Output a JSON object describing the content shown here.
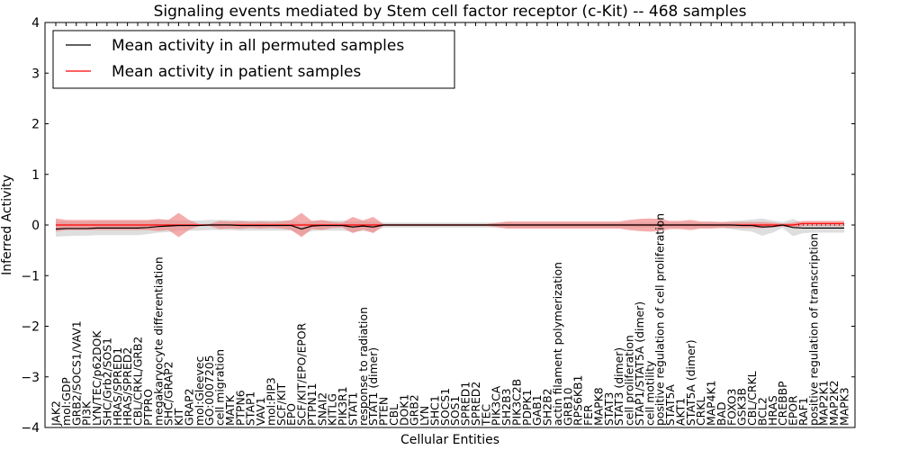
{
  "chart_data": {
    "type": "line",
    "title": "Signaling events mediated by Stem cell factor receptor (c-Kit) -- 468 samples",
    "xlabel": "Cellular Entities",
    "ylabel": "Inferred Activity",
    "ylim": [
      -4,
      4
    ],
    "yticks": [
      -4,
      -3,
      -2,
      -1,
      0,
      1,
      2,
      3,
      4
    ],
    "ytick_labels": [
      "−4",
      "−3",
      "−2",
      "−1",
      "0",
      "1",
      "2",
      "3",
      "4"
    ],
    "grid": false,
    "legend_position": "top-left",
    "categories": [
      "JAK2",
      "mol:GDP",
      "GRB2/SOCS1/VAV1",
      "PI3K",
      "LYN/TEC/p62DOK",
      "SHC/Grb2/SOS1",
      "HRAS/SPRED1",
      "HRAS/SPRED2",
      "CBL/CRKL/GRB2",
      "PTPRO",
      "megakaryocyte differentiation",
      "SHC/GRAP2",
      "KIT",
      "GRAP2",
      "mol:Gleevec",
      "GO:0007205",
      "cell migration",
      "MATK",
      "PTPN6",
      "STAP1",
      "VAV1",
      "mol:PIP3",
      "SCF/KIT",
      "EPO",
      "SCF/KIT/EPO/EPOR",
      "PTPN11",
      "SNAI2",
      "KITLG",
      "PIK3R1",
      "STAT1",
      "response to radiation",
      "STAT1 (dimer)",
      "PTEN",
      "CBL",
      "DOK1",
      "GRB2",
      "LYN",
      "SHC1",
      "SOCS1",
      "SOS1",
      "SPRED1",
      "SPRED2",
      "TEC",
      "PIK3CA",
      "SH2B3",
      "PIK3C2B",
      "PDPK1",
      "GAB1",
      "SH2B2",
      "actin filament polymerization",
      "GRB10",
      "RPS6KB1",
      "FER",
      "MAPK8",
      "STAT3",
      "STAT3 (dimer)",
      "cell proliferation",
      "STAP1/STAT5A (dimer)",
      "cell motility",
      "positive regulation of cell proliferation",
      "STAT5A",
      "AKT1",
      "STAT5A (dimer)",
      "CRKL",
      "MAP4K1",
      "BAD",
      "FOXO3",
      "GSK3B",
      "CBL/CRKL",
      "BCL2",
      "HRAS",
      "CREBBP",
      "EPOR",
      "RAF1",
      "positive regulation of transcription",
      "MAP2K1",
      "MAP2K2",
      "MAPK3"
    ],
    "series": [
      {
        "name": "Mean activity in all permuted samples",
        "color": "#000000",
        "values": [
          -0.08,
          -0.07,
          -0.07,
          -0.07,
          -0.06,
          -0.06,
          -0.06,
          -0.06,
          -0.06,
          -0.05,
          -0.03,
          -0.02,
          -0.01,
          -0.01,
          -0.01,
          0.0,
          0.0,
          0.0,
          -0.01,
          -0.01,
          -0.01,
          -0.01,
          -0.01,
          -0.01,
          -0.08,
          -0.02,
          -0.01,
          -0.01,
          -0.01,
          -0.04,
          -0.02,
          -0.04,
          0.0,
          0.0,
          0.0,
          0.0,
          0.0,
          0.0,
          0.0,
          0.0,
          0.0,
          0.0,
          0.0,
          0.0,
          0.0,
          0.0,
          0.0,
          0.0,
          0.0,
          0.0,
          0.0,
          0.0,
          0.0,
          0.0,
          0.0,
          0.0,
          0.0,
          0.0,
          0.0,
          0.0,
          0.0,
          0.0,
          0.0,
          0.0,
          0.0,
          0.0,
          0.0,
          -0.01,
          -0.01,
          -0.04,
          -0.03,
          0.0,
          -0.05,
          -0.06,
          -0.06,
          -0.06,
          -0.06,
          -0.06
        ],
        "band": [
          0.15,
          0.15,
          0.14,
          0.14,
          0.14,
          0.14,
          0.14,
          0.14,
          0.14,
          0.13,
          0.12,
          0.12,
          0.1,
          0.1,
          0.1,
          0.1,
          0.1,
          0.1,
          0.1,
          0.1,
          0.1,
          0.1,
          0.1,
          0.1,
          0.12,
          0.1,
          0.1,
          0.1,
          0.1,
          0.1,
          0.1,
          0.1,
          0.05,
          0.05,
          0.05,
          0.05,
          0.05,
          0.05,
          0.05,
          0.05,
          0.05,
          0.05,
          0.05,
          0.05,
          0.05,
          0.05,
          0.05,
          0.05,
          0.05,
          0.05,
          0.05,
          0.05,
          0.05,
          0.05,
          0.05,
          0.05,
          0.05,
          0.05,
          0.05,
          0.05,
          0.05,
          0.05,
          0.05,
          0.05,
          0.05,
          0.05,
          0.08,
          0.1,
          0.12,
          0.17,
          0.12,
          0.06,
          0.17,
          0.1,
          0.09,
          0.09,
          0.09,
          0.09
        ]
      },
      {
        "name": "Mean activity in patient samples",
        "color": "#ff0000",
        "values": [
          0.0,
          0.0,
          0.0,
          0.0,
          0.0,
          0.0,
          0.0,
          0.0,
          0.0,
          0.0,
          0.0,
          0.0,
          0.0,
          0.0,
          0.0,
          0.0,
          0.0,
          0.0,
          0.0,
          0.0,
          0.0,
          0.0,
          0.0,
          0.0,
          0.0,
          0.0,
          0.0,
          0.0,
          0.0,
          0.0,
          0.0,
          0.0,
          0.0,
          0.0,
          0.0,
          0.0,
          0.0,
          0.0,
          0.0,
          0.0,
          0.0,
          0.0,
          0.0,
          0.0,
          0.0,
          0.0,
          0.0,
          0.0,
          0.0,
          0.0,
          0.0,
          0.0,
          0.0,
          0.0,
          0.0,
          0.0,
          0.0,
          0.0,
          0.0,
          0.0,
          0.0,
          0.0,
          0.0,
          0.0,
          0.0,
          0.0,
          0.0,
          0.0,
          0.0,
          0.0,
          0.0,
          0.0,
          0.0,
          0.03,
          0.03,
          0.03,
          0.03,
          0.03
        ],
        "band": [
          0.13,
          0.1,
          0.1,
          0.1,
          0.1,
          0.1,
          0.1,
          0.1,
          0.1,
          0.1,
          0.12,
          0.1,
          0.24,
          0.1,
          0.02,
          0.02,
          0.08,
          0.07,
          0.08,
          0.06,
          0.07,
          0.06,
          0.07,
          0.1,
          0.24,
          0.08,
          0.1,
          0.06,
          0.05,
          0.16,
          0.09,
          0.16,
          0.02,
          0.02,
          0.02,
          0.02,
          0.02,
          0.02,
          0.02,
          0.02,
          0.02,
          0.02,
          0.02,
          0.04,
          0.07,
          0.07,
          0.07,
          0.07,
          0.07,
          0.07,
          0.07,
          0.07,
          0.07,
          0.07,
          0.07,
          0.07,
          0.1,
          0.12,
          0.13,
          0.12,
          0.08,
          0.08,
          0.1,
          0.07,
          0.07,
          0.06,
          0.06,
          0.06,
          0.06,
          0.06,
          0.05,
          0.03,
          0.05,
          0.05,
          0.05,
          0.05,
          0.05,
          0.05
        ]
      }
    ]
  },
  "legend": {
    "items": [
      {
        "label": "Mean activity in all permuted samples",
        "color": "#000000"
      },
      {
        "label": "Mean activity in patient samples",
        "color": "#ff0000"
      }
    ]
  },
  "colors": {
    "patient_band": "#f08080",
    "permuted_band": "#d3d3d3",
    "zero_line": "#000000"
  }
}
